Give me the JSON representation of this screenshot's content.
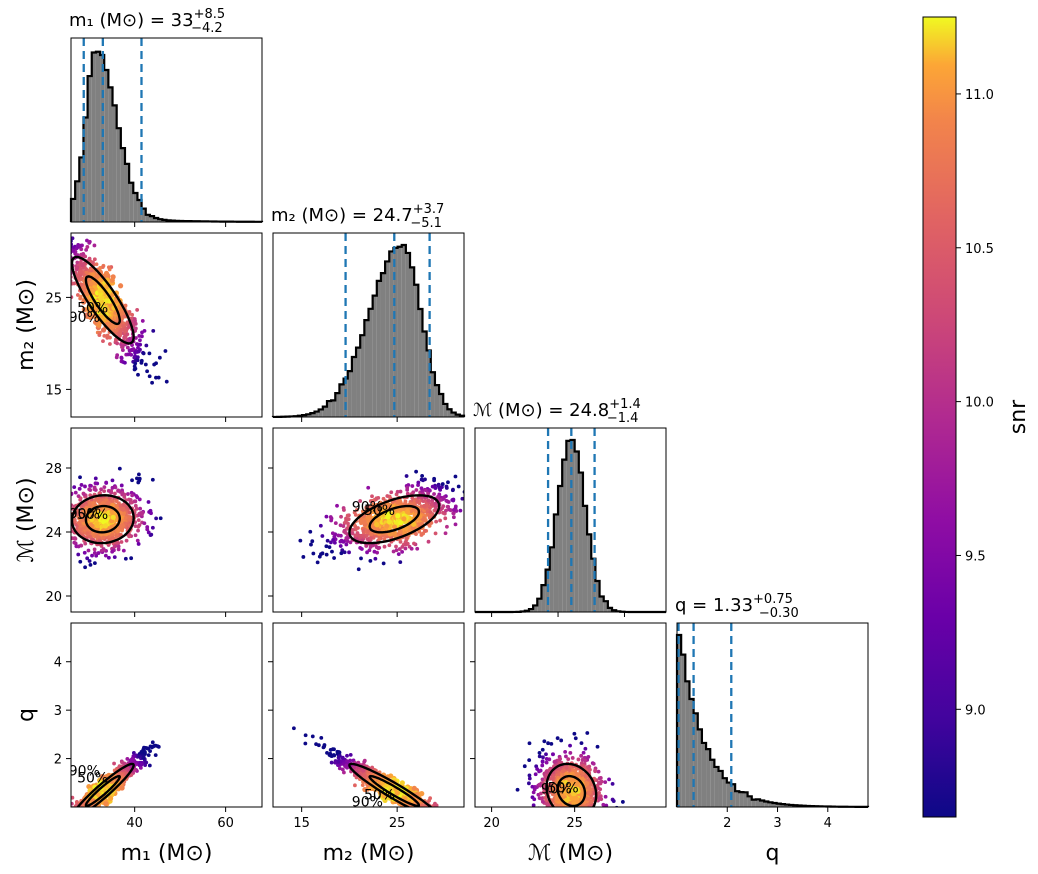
{
  "colors": {
    "hist_fill": "#808080",
    "hist_edge": "#000000",
    "quantile_line": "#1f77b4",
    "contour": "#000000",
    "colormap": "plasma"
  },
  "chart_data": {
    "type": "scatter",
    "colorbar": {
      "label": "snr",
      "range": [
        8.65,
        11.25
      ],
      "ticks": [
        9.0,
        9.5,
        10.0,
        10.5,
        11.0
      ],
      "tick_labels": [
        "9.0",
        "9.5",
        "10.0",
        "10.5",
        "11.0"
      ]
    },
    "contour_levels": [
      "50%",
      "90%"
    ],
    "parameters": [
      {
        "key": "m1",
        "axis_label": "m₁ (M⊙)",
        "range": [
          26,
          68
        ],
        "ticks": [
          40,
          60
        ],
        "tick_labels": [
          "40",
          "60"
        ],
        "title_main": "m₁ (M⊙) = 33",
        "title_sup": "+8.5",
        "title_sub": "−4.2",
        "median": 33,
        "quantiles": [
          28.8,
          33.0,
          41.5
        ],
        "dist": {
          "kind": "lognormal",
          "mode": 31.5,
          "log_sigma": 0.16,
          "shift": 26
        }
      },
      {
        "key": "m2",
        "axis_label": "m₂ (M⊙)",
        "range": [
          12,
          32
        ],
        "ticks": [
          15,
          25
        ],
        "tick_labels": [
          "15",
          "25"
        ],
        "title_main": "m₂ (M⊙) = 24.7",
        "title_sup": "+3.7",
        "title_sub": "−5.1",
        "median": 24.7,
        "quantiles": [
          19.6,
          24.7,
          28.4
        ],
        "dist": {
          "kind": "skewleft",
          "mode": 25.5,
          "sigma": 3.0
        }
      },
      {
        "key": "mc",
        "axis_label": "ℳ (M⊙)",
        "range": [
          19,
          30.5
        ],
        "ticks": [
          20,
          24,
          28
        ],
        "tick_labels": [
          "20",
          "24",
          "28"
        ],
        "tick_labels_x": [
          "20",
          "25"
        ],
        "ticks_x": [
          20,
          25
        ],
        "title_main": "ℳ (M⊙) = 24.8",
        "title_sup": "+1.4",
        "title_sub": "−1.4",
        "median": 24.8,
        "quantiles": [
          23.4,
          24.8,
          26.2
        ],
        "dist": {
          "kind": "normal",
          "mu": 24.8,
          "sigma": 0.85
        }
      },
      {
        "key": "q",
        "axis_label": "q",
        "range": [
          1.0,
          4.8
        ],
        "ticks": [
          2,
          3,
          4
        ],
        "tick_labels": [
          "2",
          "3",
          "4"
        ],
        "title_main": "q = 1.33",
        "title_sup": "+0.75",
        "title_sub": "−0.30",
        "median": 1.33,
        "quantiles": [
          1.03,
          1.33,
          2.08
        ],
        "dist": {
          "kind": "halfexp",
          "scale": 0.5
        }
      }
    ],
    "offdiagonal": [
      {
        "row": "m2",
        "col": "m1",
        "corr": -0.85
      },
      {
        "row": "mc",
        "col": "m1",
        "corr": 0.05
      },
      {
        "row": "mc",
        "col": "m2",
        "corr": 0.55
      },
      {
        "row": "q",
        "col": "m1",
        "corr": 0.95
      },
      {
        "row": "q",
        "col": "m2",
        "corr": -0.95
      },
      {
        "row": "q",
        "col": "mc",
        "corr": -0.15
      }
    ]
  }
}
